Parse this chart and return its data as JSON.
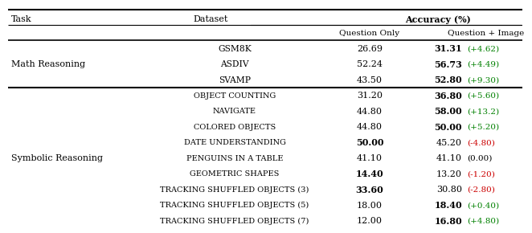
{
  "accuracy_header": "Accuracy (%)",
  "col_task": "Task",
  "col_dataset": "Dataset",
  "col_qonly": "Question Only",
  "col_qi": "Question + Image",
  "math_task": "Math Reasoning",
  "math_datasets": [
    "GSM8K",
    "ASDIV",
    "SVAMP"
  ],
  "math_qonly": [
    "26.69",
    "52.24",
    "43.50"
  ],
  "math_qonly_bold": [
    false,
    false,
    false
  ],
  "math_qi_main": [
    "31.31",
    "56.73",
    "52.80"
  ],
  "math_qi_bold": [
    true,
    true,
    true
  ],
  "math_qi_delta": [
    "+4.62",
    "+4.49",
    "+9.30"
  ],
  "math_qi_delta_color": [
    "#008000",
    "#008000",
    "#008000"
  ],
  "sym_task": "Symbolic Reasoning",
  "sym_datasets": [
    "Object Counting",
    "Navigate",
    "Colored Objects",
    "Date Understanding",
    "Penguins in a Table",
    "Geometric Shapes",
    "Tracking Shuffled Objects (3)",
    "Tracking Shuffled Objects (5)",
    "Tracking Shuffled Objects (7)"
  ],
  "sym_qonly": [
    "31.20",
    "44.80",
    "44.80",
    "50.00",
    "41.10",
    "14.40",
    "33.60",
    "18.00",
    "12.00"
  ],
  "sym_qonly_bold": [
    false,
    false,
    false,
    true,
    false,
    true,
    true,
    false,
    false
  ],
  "sym_qi_main": [
    "36.80",
    "58.00",
    "50.00",
    "45.20",
    "41.10",
    "13.20",
    "30.80",
    "18.40",
    "16.80"
  ],
  "sym_qi_bold": [
    true,
    true,
    true,
    false,
    false,
    false,
    false,
    true,
    true
  ],
  "sym_qi_delta": [
    "+5.60",
    "+13.2",
    "+5.20",
    "-4.80",
    "0.00",
    "-1.20",
    "-2.80",
    "+0.40",
    "+4.80"
  ],
  "sym_qi_delta_color": [
    "#008000",
    "#008000",
    "#008000",
    "#cc0000",
    "#000000",
    "#cc0000",
    "#cc0000",
    "#008000",
    "#008000"
  ],
  "bg_color": "#ffffff",
  "font_size": 8.0,
  "small_font_size": 7.2
}
